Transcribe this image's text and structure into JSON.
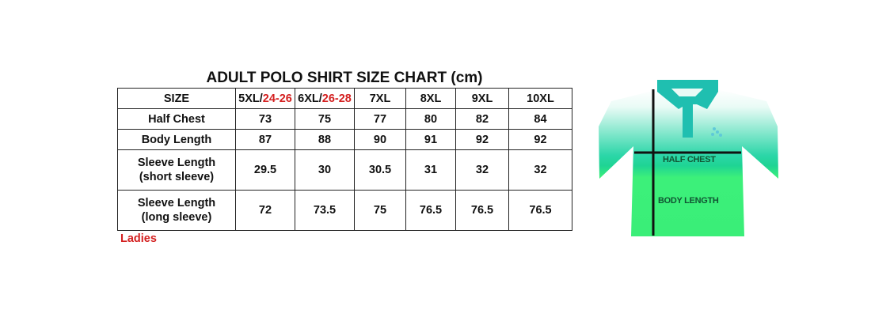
{
  "title": "ADULT POLO SHIRT SIZE CHART (cm)",
  "table": {
    "header": {
      "label": "SIZE",
      "sizes": [
        {
          "main": "5XL/",
          "ladies": "24-26"
        },
        {
          "main": "6XL/",
          "ladies": "26-28"
        },
        {
          "main": "7XL",
          "ladies": ""
        },
        {
          "main": "8XL",
          "ladies": ""
        },
        {
          "main": "9XL",
          "ladies": ""
        },
        {
          "main": "10XL",
          "ladies": ""
        }
      ]
    },
    "rows": [
      {
        "label": "Half Chest",
        "label2": "",
        "values": [
          "73",
          "75",
          "77",
          "80",
          "82",
          "84"
        ]
      },
      {
        "label": "Body Length",
        "label2": "",
        "values": [
          "87",
          "88",
          "90",
          "91",
          "92",
          "92"
        ]
      },
      {
        "label": "Sleeve Length",
        "label2": "(short sleeve)",
        "values": [
          "29.5",
          "30",
          "30.5",
          "31",
          "32",
          "32"
        ]
      },
      {
        "label": "Sleeve Length",
        "label2": "(long sleeve)",
        "values": [
          "72",
          "73.5",
          "75",
          "76.5",
          "76.5",
          "76.5"
        ]
      }
    ]
  },
  "legend_note": "Ladies",
  "diagram": {
    "half_chest_label": "HALF CHEST",
    "body_length_label": "BODY LENGTH",
    "colors": {
      "collar": "#1fbfb0",
      "shirt_top": "#e9fbf6",
      "shirt_mid": "#1fd49a",
      "shirt_bottom": "#3cf07a",
      "accent_red": "#d42020"
    }
  }
}
